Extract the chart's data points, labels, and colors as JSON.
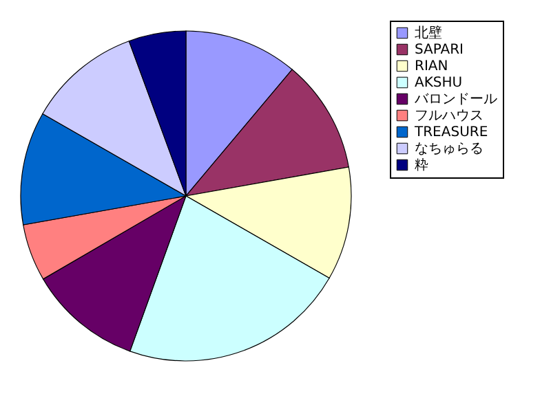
{
  "chart_data": {
    "type": "pie",
    "categories": [
      "北壁",
      "SAPARI",
      "RIAN",
      "AKSHU",
      "バロンドール",
      "フルハウス",
      "TREASURE",
      "なちゅらる",
      "粋"
    ],
    "values": [
      11.1,
      11.1,
      11.1,
      22.2,
      11.1,
      5.6,
      11.1,
      11.1,
      5.6
    ],
    "colors": [
      "#9999ff",
      "#993366",
      "#ffffcc",
      "#ccffff",
      "#660066",
      "#ff8080",
      "#0066cc",
      "#ccccff",
      "#000080"
    ],
    "legend": "right"
  }
}
